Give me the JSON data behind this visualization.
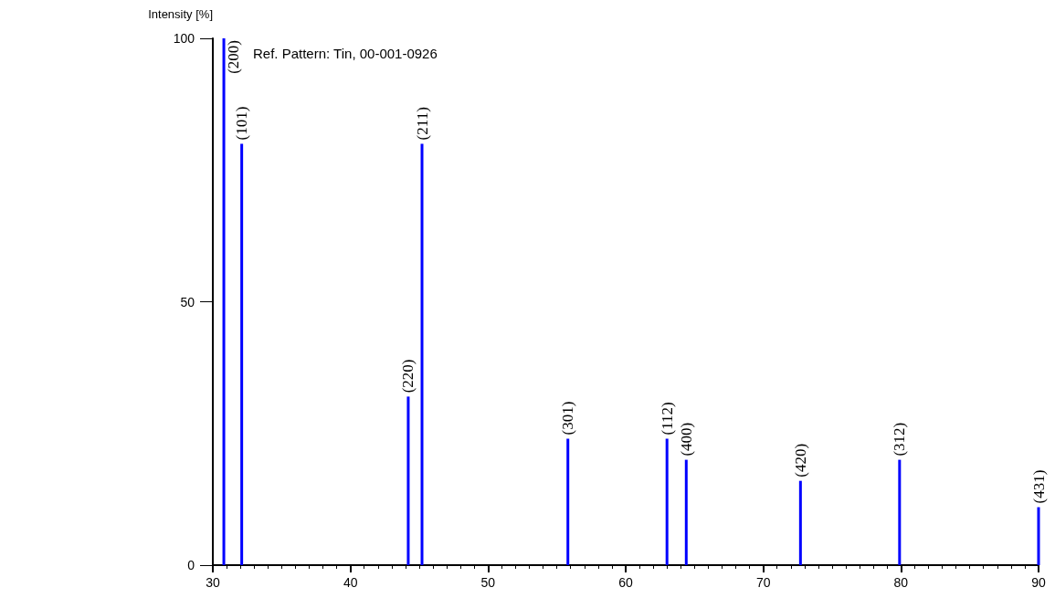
{
  "chart_data": {
    "type": "bar",
    "title": "Ref. Pattern: Tin, 00-001-0926",
    "ylabel": "Intensity [%]",
    "x": [
      30.8,
      32.1,
      44.2,
      45.2,
      55.8,
      63.0,
      64.4,
      72.7,
      79.9,
      90.0
    ],
    "series": [
      {
        "color": "#0000ff",
        "values": [
          100,
          80,
          32,
          80,
          24,
          24,
          20,
          16,
          20,
          11
        ]
      }
    ],
    "annotations": [
      {
        "text": "(200)",
        "x": 30.8,
        "y": 100
      },
      {
        "text": "(101)",
        "x": 32.1,
        "y": 80
      },
      {
        "text": "(220)",
        "x": 44.2,
        "y": 32
      },
      {
        "text": "(211)",
        "x": 45.2,
        "y": 80
      },
      {
        "text": "(301)",
        "x": 55.8,
        "y": 24
      },
      {
        "text": "(112)",
        "x": 63.0,
        "y": 24
      },
      {
        "text": "(400)",
        "x": 64.4,
        "y": 20
      },
      {
        "text": "(420)",
        "x": 72.7,
        "y": 16
      },
      {
        "text": "(312)",
        "x": 79.9,
        "y": 20
      },
      {
        "text": "(431)",
        "x": 90.0,
        "y": 11
      }
    ],
    "xlim": [
      30,
      90
    ],
    "xticks": [
      30,
      40,
      50,
      60,
      70,
      80,
      90
    ],
    "ylim": [
      0,
      100
    ],
    "yticks": [
      0,
      50,
      100
    ],
    "grid": false
  }
}
